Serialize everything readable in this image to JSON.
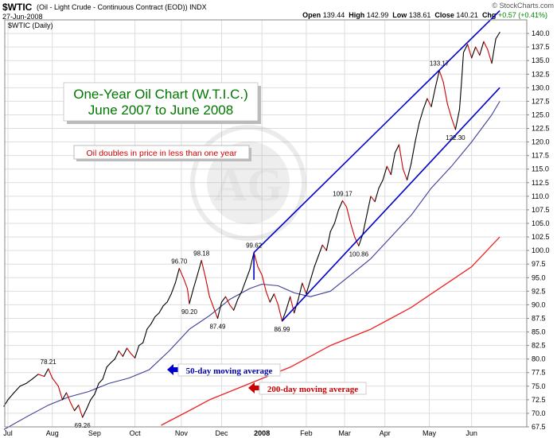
{
  "header": {
    "symbol": "$WTIC",
    "description": "(Oil - Light Crude - Continuous Contract (EOD)) INDX",
    "date": "27-Jun-2008",
    "open_label": "Open",
    "open": "139.44",
    "high_label": "High",
    "high": "142.99",
    "low_label": "Low",
    "low": "138.61",
    "close_label": "Close",
    "close": "140.21",
    "chg_label": "Chg",
    "chg": "+0.57 (+0.41%)",
    "legend": "$WTIC (Daily)",
    "brand": "© StockCharts.com"
  },
  "chart_data": {
    "type": "line",
    "title": "One-Year Oil Chart (W.T.I.C.)",
    "subtitle": "June 2007 to June 2008",
    "annotation": "Oil doubles in price in less than one year",
    "ylim": [
      67.5,
      142.5
    ],
    "ytick_step": 2.5,
    "x_ticks": [
      "Jul",
      "Aug",
      "Sep",
      "Oct",
      "Nov",
      "Dec",
      "2008",
      "Feb",
      "Mar",
      "Apr",
      "May",
      "Jun"
    ],
    "x_tick_days": [
      0,
      22,
      43,
      63,
      86,
      106,
      126,
      148,
      167,
      187,
      209,
      230
    ],
    "n_days": 255,
    "price": {
      "points": [
        [
          -2,
          71.3
        ],
        [
          0,
          72.5
        ],
        [
          3,
          73.8
        ],
        [
          6,
          75.0
        ],
        [
          9,
          75.5
        ],
        [
          12,
          76.3
        ],
        [
          15,
          77.2
        ],
        [
          18,
          76.8
        ],
        [
          20,
          78.21
        ],
        [
          22,
          76.5
        ],
        [
          25,
          75.0
        ],
        [
          27,
          72.5
        ],
        [
          29,
          73.8
        ],
        [
          31,
          72.0
        ],
        [
          33,
          70.5
        ],
        [
          35,
          71.5
        ],
        [
          37,
          69.26
        ],
        [
          39,
          70.8
        ],
        [
          41,
          72.5
        ],
        [
          43,
          73.5
        ],
        [
          45,
          75.5
        ],
        [
          47,
          76.3
        ],
        [
          49,
          78.5
        ],
        [
          51,
          79.3
        ],
        [
          53,
          80.0
        ],
        [
          55,
          81.5
        ],
        [
          57,
          80.5
        ],
        [
          59,
          82.0
        ],
        [
          61,
          81.0
        ],
        [
          63,
          80.2
        ],
        [
          65,
          82.5
        ],
        [
          67,
          83.0
        ],
        [
          69,
          85.5
        ],
        [
          71,
          86.5
        ],
        [
          73,
          87.8
        ],
        [
          75,
          88.5
        ],
        [
          77,
          89.8
        ],
        [
          79,
          90.5
        ],
        [
          81,
          92.0
        ],
        [
          83,
          94.0
        ],
        [
          85,
          96.7
        ],
        [
          87,
          95.0
        ],
        [
          89,
          93.0
        ],
        [
          90,
          90.2
        ],
        [
          92,
          93.0
        ],
        [
          94,
          95.5
        ],
        [
          96,
          98.18
        ],
        [
          98,
          95.0
        ],
        [
          100,
          91.5
        ],
        [
          102,
          89.5
        ],
        [
          104,
          87.49
        ],
        [
          106,
          90.5
        ],
        [
          108,
          91.5
        ],
        [
          110,
          90.0
        ],
        [
          112,
          89.0
        ],
        [
          114,
          91.0
        ],
        [
          116,
          92.5
        ],
        [
          118,
          94.5
        ],
        [
          120,
          96.5
        ],
        [
          122,
          99.62
        ],
        [
          124,
          97.0
        ],
        [
          126,
          95.5
        ],
        [
          128,
          92.5
        ],
        [
          130,
          90.5
        ],
        [
          132,
          92.0
        ],
        [
          134,
          90.0
        ],
        [
          136,
          86.99
        ],
        [
          138,
          89.0
        ],
        [
          140,
          91.5
        ],
        [
          142,
          88.5
        ],
        [
          144,
          91.0
        ],
        [
          146,
          94.0
        ],
        [
          148,
          92.0
        ],
        [
          150,
          94.5
        ],
        [
          152,
          97.0
        ],
        [
          154,
          99.0
        ],
        [
          156,
          101.0
        ],
        [
          158,
          100.0
        ],
        [
          160,
          103.5
        ],
        [
          162,
          105.0
        ],
        [
          164,
          107.5
        ],
        [
          166,
          109.17
        ],
        [
          168,
          108.0
        ],
        [
          170,
          105.0
        ],
        [
          172,
          102.5
        ],
        [
          174,
          100.86
        ],
        [
          176,
          103.0
        ],
        [
          178,
          106.5
        ],
        [
          180,
          110.0
        ],
        [
          182,
          109.0
        ],
        [
          184,
          111.5
        ],
        [
          186,
          113.0
        ],
        [
          188,
          115.5
        ],
        [
          190,
          114.0
        ],
        [
          192,
          118.0
        ],
        [
          194,
          119.5
        ],
        [
          196,
          115.0
        ],
        [
          198,
          113.0
        ],
        [
          200,
          116.0
        ],
        [
          202,
          120.0
        ],
        [
          204,
          123.5
        ],
        [
          206,
          126.0
        ],
        [
          208,
          128.0
        ],
        [
          210,
          126.5
        ],
        [
          212,
          130.0
        ],
        [
          214,
          133.17
        ],
        [
          216,
          131.0
        ],
        [
          218,
          127.0
        ],
        [
          220,
          124.5
        ],
        [
          222,
          122.3
        ],
        [
          224,
          126.0
        ],
        [
          225,
          131.0
        ],
        [
          226,
          136.5
        ],
        [
          228,
          138.0
        ],
        [
          230,
          135.5
        ],
        [
          232,
          137.5
        ],
        [
          234,
          136.0
        ],
        [
          236,
          138.5
        ],
        [
          238,
          137.0
        ],
        [
          240,
          134.5
        ],
        [
          242,
          139.0
        ],
        [
          244,
          140.21
        ]
      ]
    },
    "ma50": {
      "name": "50-day moving average",
      "points": [
        [
          -2,
          67.0
        ],
        [
          10,
          69.5
        ],
        [
          20,
          71.5
        ],
        [
          30,
          73.0
        ],
        [
          40,
          74.0
        ],
        [
          50,
          75.5
        ],
        [
          60,
          76.5
        ],
        [
          70,
          78.0
        ],
        [
          80,
          81.5
        ],
        [
          90,
          85.5
        ],
        [
          100,
          88.0
        ],
        [
          110,
          91.0
        ],
        [
          120,
          93.0
        ],
        [
          126,
          93.8
        ],
        [
          134,
          93.5
        ],
        [
          142,
          92.2
        ],
        [
          150,
          91.5
        ],
        [
          160,
          92.5
        ],
        [
          170,
          95.5
        ],
        [
          180,
          98.5
        ],
        [
          190,
          102.5
        ],
        [
          200,
          106.5
        ],
        [
          210,
          111.5
        ],
        [
          220,
          115.5
        ],
        [
          230,
          120.0
        ],
        [
          240,
          125.0
        ],
        [
          244,
          127.5
        ]
      ]
    },
    "ma200": {
      "name": "200-day moving average",
      "points": [
        [
          76,
          67.8
        ],
        [
          90,
          70.5
        ],
        [
          100,
          72.5
        ],
        [
          110,
          74.0
        ],
        [
          120,
          75.5
        ],
        [
          130,
          77.0
        ],
        [
          140,
          78.5
        ],
        [
          150,
          80.5
        ],
        [
          160,
          82.5
        ],
        [
          170,
          84.0
        ],
        [
          180,
          85.5
        ],
        [
          190,
          87.5
        ],
        [
          200,
          89.5
        ],
        [
          210,
          92.0
        ],
        [
          220,
          94.5
        ],
        [
          230,
          97.0
        ],
        [
          244,
          102.5
        ]
      ]
    },
    "channel": [
      {
        "from": [
          122,
          99.62
        ],
        "to": [
          244,
          144.2
        ]
      },
      {
        "from": [
          122,
          99.62
        ],
        "to": [
          122,
          94.6
        ]
      },
      {
        "from": [
          136,
          86.99
        ],
        "to": [
          244,
          130.0
        ]
      }
    ],
    "peak_labels": [
      {
        "text": "78.21",
        "day": 20,
        "value": 78.21,
        "pos": "above"
      },
      {
        "text": "69.26",
        "day": 37,
        "value": 69.26,
        "pos": "below"
      },
      {
        "text": "96.70",
        "day": 85,
        "value": 96.7,
        "pos": "above"
      },
      {
        "text": "90.20",
        "day": 90,
        "value": 90.2,
        "pos": "below"
      },
      {
        "text": "98.18",
        "day": 96,
        "value": 98.18,
        "pos": "above"
      },
      {
        "text": "87.49",
        "day": 104,
        "value": 87.49,
        "pos": "below"
      },
      {
        "text": "99.62",
        "day": 122,
        "value": 99.62,
        "pos": "above"
      },
      {
        "text": "86.99",
        "day": 136,
        "value": 86.99,
        "pos": "below"
      },
      {
        "text": "109.17",
        "day": 166,
        "value": 109.17,
        "pos": "above"
      },
      {
        "text": "100.86",
        "day": 174,
        "value": 100.86,
        "pos": "below"
      },
      {
        "text": "133.17",
        "day": 214,
        "value": 133.17,
        "pos": "above"
      },
      {
        "text": "122.30",
        "day": 222,
        "value": 122.3,
        "pos": "below"
      }
    ],
    "colors": {
      "price_up": "#000000",
      "price_down": "#cc0000",
      "ma50": "#3c3c96",
      "ma200": "#ee2222",
      "channel": "#0000cc",
      "grid": "#dddddd",
      "title": "#007700",
      "annotation": "#cc0000",
      "label50": "#0000aa",
      "label200": "#cc0000"
    }
  }
}
